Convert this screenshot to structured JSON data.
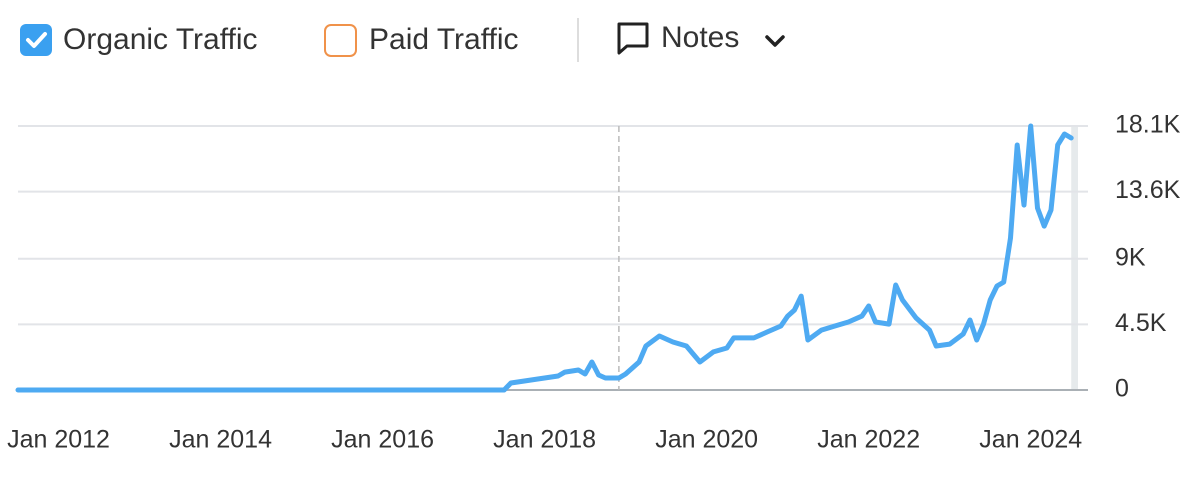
{
  "chart_data": {
    "type": "line",
    "series": [
      {
        "name": "Organic Traffic",
        "color": "#4eaaf2",
        "checked": true,
        "x": [
          "2011-07",
          "2017-07",
          "2017-08",
          "2017-10",
          "2018-01",
          "2018-03",
          "2018-04",
          "2018-06",
          "2018-07",
          "2018-08",
          "2018-09",
          "2018-10",
          "2018-12",
          "2019-01",
          "2019-03",
          "2019-04",
          "2019-06",
          "2019-08",
          "2019-10",
          "2019-12",
          "2020-02",
          "2020-04",
          "2020-05",
          "2020-08",
          "2020-10",
          "2020-12",
          "2021-01",
          "2021-02",
          "2021-03",
          "2021-04",
          "2021-06",
          "2021-08",
          "2021-10",
          "2021-12",
          "2022-01",
          "2022-02",
          "2022-04",
          "2022-05",
          "2022-06",
          "2022-08",
          "2022-10",
          "2022-11",
          "2023-01",
          "2023-03",
          "2023-04",
          "2023-05",
          "2023-06",
          "2023-07",
          "2023-08",
          "2023-09",
          "2023-10",
          "2023-11",
          "2023-12",
          "2024-01",
          "2024-02",
          "2024-03",
          "2024-04",
          "2024-05",
          "2024-06",
          "2024-07"
        ],
        "values": [
          0,
          0,
          480,
          620,
          820,
          960,
          1230,
          1370,
          1100,
          1920,
          1030,
          820,
          820,
          1100,
          1920,
          3020,
          3700,
          3290,
          3020,
          1920,
          2610,
          2880,
          3570,
          3570,
          3980,
          4390,
          5070,
          5480,
          6440,
          3430,
          4110,
          4390,
          4660,
          5070,
          5760,
          4660,
          4520,
          7200,
          6170,
          4940,
          4110,
          3020,
          3150,
          3840,
          4800,
          3430,
          4520,
          6170,
          7130,
          7400,
          10420,
          16800,
          12680,
          18100,
          12480,
          11240,
          12340,
          16800,
          17550,
          17280
        ]
      }
    ],
    "other_series": [
      {
        "name": "Paid Traffic",
        "color": "#f0924a",
        "checked": false
      }
    ],
    "notes_button": "Notes",
    "xlim": [
      "2011-07",
      "2024-08"
    ],
    "xticks": [
      {
        "value": "2012-01",
        "label": "Jan 2012"
      },
      {
        "value": "2014-01",
        "label": "Jan 2014"
      },
      {
        "value": "2016-01",
        "label": "Jan 2016"
      },
      {
        "value": "2018-01",
        "label": "Jan 2018"
      },
      {
        "value": "2020-01",
        "label": "Jan 2020"
      },
      {
        "value": "2022-01",
        "label": "Jan 2022"
      },
      {
        "value": "2024-01",
        "label": "Jan 2024"
      }
    ],
    "ylim": [
      0,
      18100
    ],
    "yticks": [
      0,
      {
        "value": 4500,
        "label": "4.5K"
      },
      {
        "value": 9000,
        "label": "9K"
      },
      {
        "value": 13600,
        "label": "13.6K"
      },
      {
        "value": 18100,
        "label": "18.1K"
      }
    ],
    "grid": true,
    "marker_x": "2018-12",
    "shaded_from": "2024-07"
  }
}
